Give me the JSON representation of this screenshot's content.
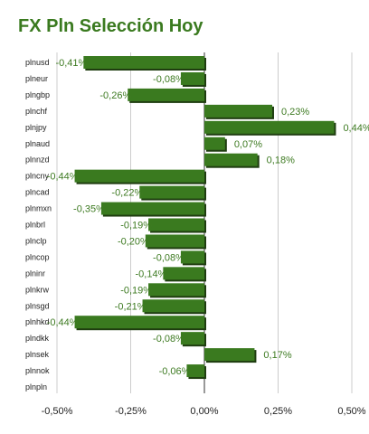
{
  "chart_data": {
    "type": "bar",
    "orientation": "horizontal",
    "title": "FX Pln Selección Hoy",
    "categories": [
      "plnusd",
      "plneur",
      "plngbp",
      "plnchf",
      "plnjpy",
      "plnaud",
      "plnnzd",
      "plncny",
      "plncad",
      "plnmxn",
      "plnbrl",
      "plnclp",
      "plncop",
      "plninr",
      "plnkrw",
      "plnsgd",
      "plnhkd",
      "plndkk",
      "plnsek",
      "plnnok",
      "plnpln"
    ],
    "values": [
      -0.41,
      -0.08,
      -0.26,
      0.23,
      0.44,
      0.07,
      0.18,
      -0.44,
      -0.22,
      -0.35,
      -0.19,
      -0.2,
      -0.08,
      -0.14,
      -0.19,
      -0.21,
      -0.44,
      -0.08,
      0.17,
      -0.06,
      0.0
    ],
    "value_labels": [
      "-0,41%",
      "-0,08%",
      "-0,26%",
      "0,23%",
      "0,44%",
      "0,07%",
      "0,18%",
      "-0,44%",
      "-0,22%",
      "-0,35%",
      "-0,19%",
      "-0,20%",
      "-0,08%",
      "-0,14%",
      "-0,19%",
      "-0,21%",
      "-0,44%",
      "-0,08%",
      "0,17%",
      "-0,06%",
      ""
    ],
    "xlim": [
      -0.5,
      0.5
    ],
    "xticks": [
      -0.5,
      -0.25,
      0.0,
      0.25,
      0.5
    ],
    "xtick_labels": [
      "-0,50%",
      "-0,25%",
      "0,00%",
      "0,25%",
      "0,50%"
    ],
    "xlabel": "",
    "ylabel": "",
    "grid": true,
    "bar_color": "#3a7a1f",
    "bar_shadow_color": "#1f3d10",
    "label_color": "#3d7a21"
  }
}
